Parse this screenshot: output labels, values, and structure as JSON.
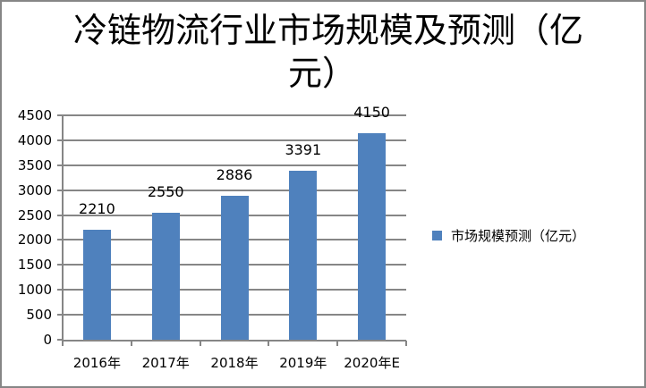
{
  "chart_data": {
    "type": "bar",
    "title": "冷链物流行业市场规模及预测（亿元）",
    "title_lines": [
      "冷链物流行业市场规模及预测（亿",
      "元）"
    ],
    "categories": [
      "2016年",
      "2017年",
      "2018年",
      "2019年",
      "2020年E"
    ],
    "series": [
      {
        "name": "市场规模预测（亿元）",
        "values": [
          2210,
          2550,
          2886,
          3391,
          4150
        ],
        "color": "#4f81bd"
      }
    ],
    "data_labels": [
      "2210",
      "2550",
      "2886",
      "3391",
      "4150"
    ],
    "xlabel": "",
    "ylabel": "",
    "ylim": [
      0,
      4500
    ],
    "yticks": [
      "0",
      "500",
      "1000",
      "1500",
      "2000",
      "2500",
      "3000",
      "3500",
      "4000",
      "4500"
    ],
    "grid": true,
    "legend_position": "right"
  },
  "legend": {
    "label": "市场规模预测（亿元）",
    "color": "#4f81bd"
  }
}
